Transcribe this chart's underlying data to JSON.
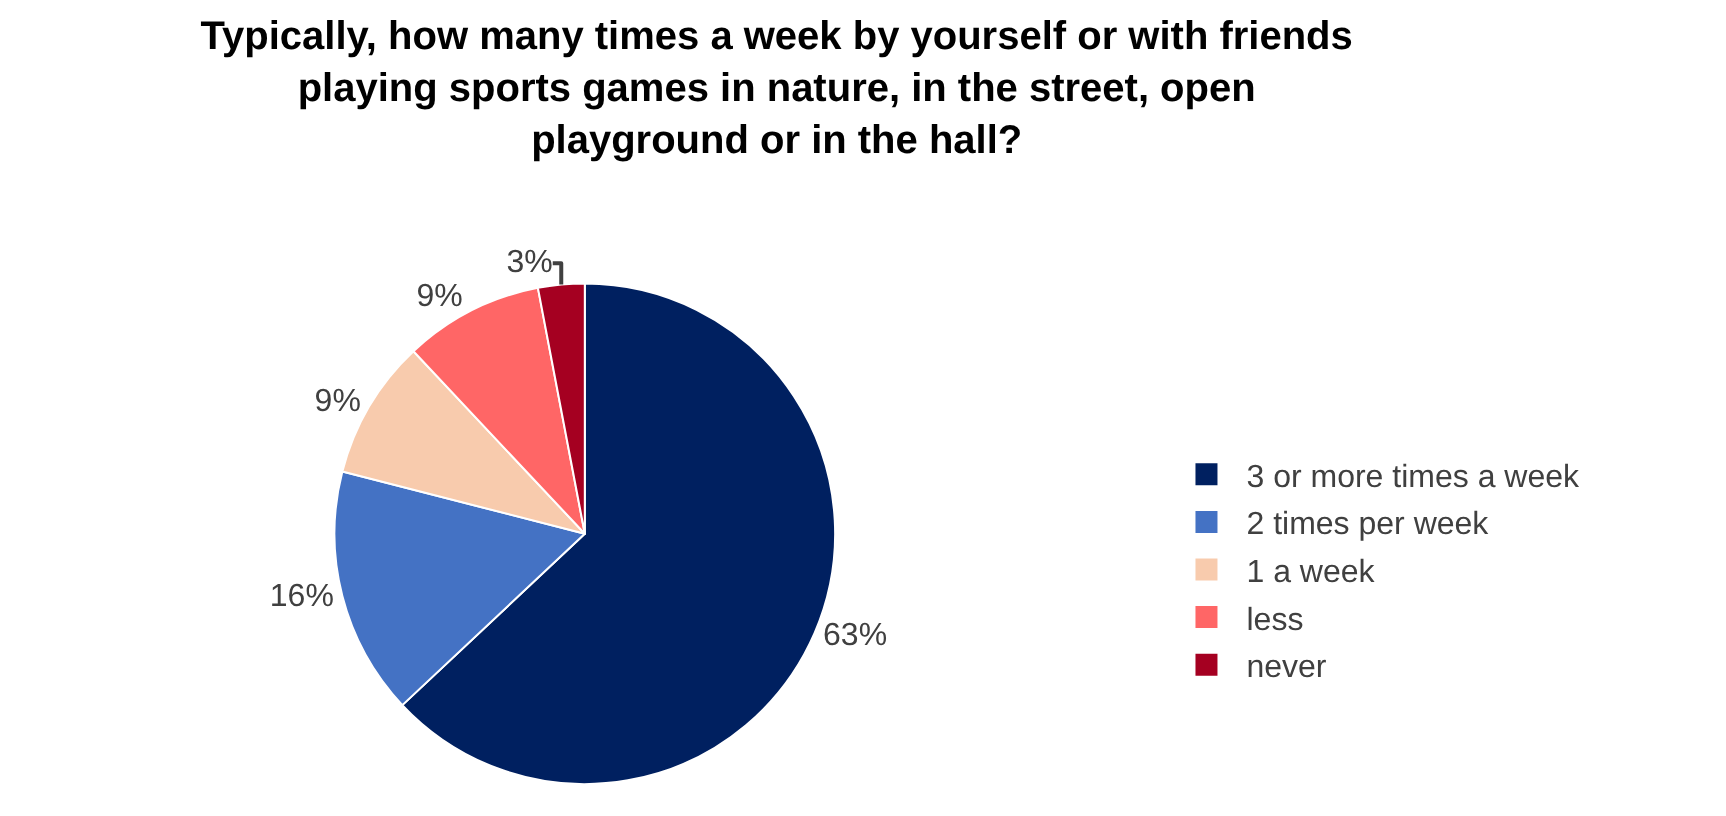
{
  "chart_data": {
    "type": "pie",
    "title": "Typically, how many times a week by yourself or with friends playing sports games in nature, in the street, open playground or in the hall?",
    "categories": [
      "3 or more times a week",
      "2 times per week",
      "1 a week",
      "less",
      "never"
    ],
    "values": [
      63,
      16,
      9,
      9,
      3
    ],
    "colors": [
      "#002060",
      "#4472c4",
      "#f8cbad",
      "#ff6666",
      "#a50021"
    ],
    "value_labels": [
      "63%",
      "16%",
      "9%",
      "9%",
      "3%"
    ],
    "legend": "right"
  }
}
